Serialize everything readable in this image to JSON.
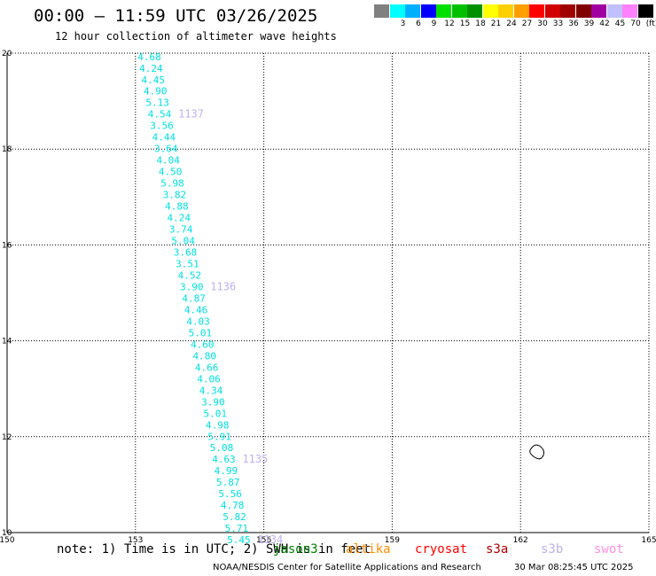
{
  "header": {
    "title": "00:00 – 11:59 UTC 03/26/2025",
    "subtitle": "12 hour collection of altimeter wave heights"
  },
  "legend": {
    "unit": "(ft)",
    "bins": [
      {
        "label": "",
        "color": "#808080"
      },
      {
        "label": "3",
        "color": "#00ffff"
      },
      {
        "label": "6",
        "color": "#00b0ff"
      },
      {
        "label": "9",
        "color": "#0000ff"
      },
      {
        "label": "12",
        "color": "#00e000"
      },
      {
        "label": "15",
        "color": "#00c000"
      },
      {
        "label": "18",
        "color": "#009000"
      },
      {
        "label": "21",
        "color": "#ffff00"
      },
      {
        "label": "24",
        "color": "#ffd000"
      },
      {
        "label": "27",
        "color": "#ffa000"
      },
      {
        "label": "30",
        "color": "#ff0000"
      },
      {
        "label": "33",
        "color": "#d00000"
      },
      {
        "label": "36",
        "color": "#a00000"
      },
      {
        "label": "39",
        "color": "#800000"
      },
      {
        "label": "42",
        "color": "#a000a0"
      },
      {
        "label": "45",
        "color": "#c0c0ff"
      },
      {
        "label": "70",
        "color": "#ff80ff"
      },
      {
        "label": "",
        "color": "#000000"
      }
    ]
  },
  "map": {
    "lon_range": [
      150,
      165
    ],
    "lat_range": [
      10,
      20
    ],
    "lon_ticks": [
      "150",
      "153",
      "156",
      "159",
      "162",
      "165"
    ],
    "lat_ticks": [
      "10",
      "12",
      "14",
      "16",
      "18",
      "20"
    ],
    "grid_color": "#000000",
    "wave_color": "#00e0e0",
    "time_label_color": "#c0b0f0",
    "wave_heights": [
      {
        "lat": 19.93,
        "lon": 153.05,
        "v": "4.68"
      },
      {
        "lat": 19.69,
        "lon": 153.09,
        "v": "4.24"
      },
      {
        "lat": 19.45,
        "lon": 153.14,
        "v": "4.45"
      },
      {
        "lat": 19.21,
        "lon": 153.19,
        "v": "4.90"
      },
      {
        "lat": 18.97,
        "lon": 153.24,
        "v": "5.13"
      },
      {
        "lat": 18.73,
        "lon": 153.29,
        "v": "4.54"
      },
      {
        "lat": 18.49,
        "lon": 153.34,
        "v": "3.56"
      },
      {
        "lat": 18.25,
        "lon": 153.39,
        "v": "4.44"
      },
      {
        "lat": 18.01,
        "lon": 153.44,
        "v": "3.64"
      },
      {
        "lat": 17.77,
        "lon": 153.49,
        "v": "4.04"
      },
      {
        "lat": 17.53,
        "lon": 153.54,
        "v": "4.50"
      },
      {
        "lat": 17.29,
        "lon": 153.59,
        "v": "5.98"
      },
      {
        "lat": 17.05,
        "lon": 153.64,
        "v": "3.82"
      },
      {
        "lat": 16.81,
        "lon": 153.69,
        "v": "4.88"
      },
      {
        "lat": 16.57,
        "lon": 153.74,
        "v": "4.24"
      },
      {
        "lat": 16.33,
        "lon": 153.79,
        "v": "3.74"
      },
      {
        "lat": 16.09,
        "lon": 153.84,
        "v": "5.04"
      },
      {
        "lat": 15.85,
        "lon": 153.89,
        "v": "3.68"
      },
      {
        "lat": 15.61,
        "lon": 153.94,
        "v": "3.51"
      },
      {
        "lat": 15.37,
        "lon": 153.99,
        "v": "4.52"
      },
      {
        "lat": 15.13,
        "lon": 154.04,
        "v": "3.90"
      },
      {
        "lat": 14.89,
        "lon": 154.09,
        "v": "4.87"
      },
      {
        "lat": 14.65,
        "lon": 154.14,
        "v": "4.46"
      },
      {
        "lat": 14.41,
        "lon": 154.19,
        "v": "4.03"
      },
      {
        "lat": 14.17,
        "lon": 154.24,
        "v": "5.01"
      },
      {
        "lat": 13.93,
        "lon": 154.29,
        "v": "4.60"
      },
      {
        "lat": 13.69,
        "lon": 154.34,
        "v": "4.80"
      },
      {
        "lat": 13.45,
        "lon": 154.39,
        "v": "4.66"
      },
      {
        "lat": 13.21,
        "lon": 154.44,
        "v": "4.06"
      },
      {
        "lat": 12.97,
        "lon": 154.49,
        "v": "4.34"
      },
      {
        "lat": 12.73,
        "lon": 154.54,
        "v": "3.90"
      },
      {
        "lat": 12.49,
        "lon": 154.59,
        "v": "5.01"
      },
      {
        "lat": 12.25,
        "lon": 154.64,
        "v": "4.98"
      },
      {
        "lat": 12.01,
        "lon": 154.69,
        "v": "5.91"
      },
      {
        "lat": 11.77,
        "lon": 154.74,
        "v": "5.08"
      },
      {
        "lat": 11.53,
        "lon": 154.79,
        "v": "4.63"
      },
      {
        "lat": 11.29,
        "lon": 154.84,
        "v": "4.99"
      },
      {
        "lat": 11.05,
        "lon": 154.89,
        "v": "5.87"
      },
      {
        "lat": 10.81,
        "lon": 154.94,
        "v": "5.56"
      },
      {
        "lat": 10.57,
        "lon": 154.99,
        "v": "4.78"
      },
      {
        "lat": 10.33,
        "lon": 155.04,
        "v": "5.82"
      },
      {
        "lat": 10.09,
        "lon": 155.09,
        "v": "5.71"
      },
      {
        "lat": 9.85,
        "lon": 155.14,
        "v": "5.45"
      }
    ],
    "time_labels": [
      {
        "lat": 18.73,
        "lon": 154.0,
        "v": "1137"
      },
      {
        "lat": 15.13,
        "lon": 154.75,
        "v": "1136"
      },
      {
        "lat": 11.53,
        "lon": 155.5,
        "v": "1135"
      },
      {
        "lat": 9.85,
        "lon": 155.85,
        "v": "1134"
      }
    ]
  },
  "footer": {
    "note": "note: 1) Time is in UTC; 2) SWH is in feet",
    "satellites": [
      {
        "name": "jason3",
        "color": "#008000"
      },
      {
        "name": "altika",
        "color": "#ff9000"
      },
      {
        "name": "cryosat",
        "color": "#ff0000"
      },
      {
        "name": "s3a",
        "color": "#b00000"
      },
      {
        "name": "s3b",
        "color": "#c0b0f0"
      },
      {
        "name": "swot",
        "color": "#ff90e0"
      }
    ],
    "credit": "NOAA/NESDIS Center for Satellite Applications and Research",
    "generated": "30 Mar 08:25:45 UTC 2025"
  }
}
